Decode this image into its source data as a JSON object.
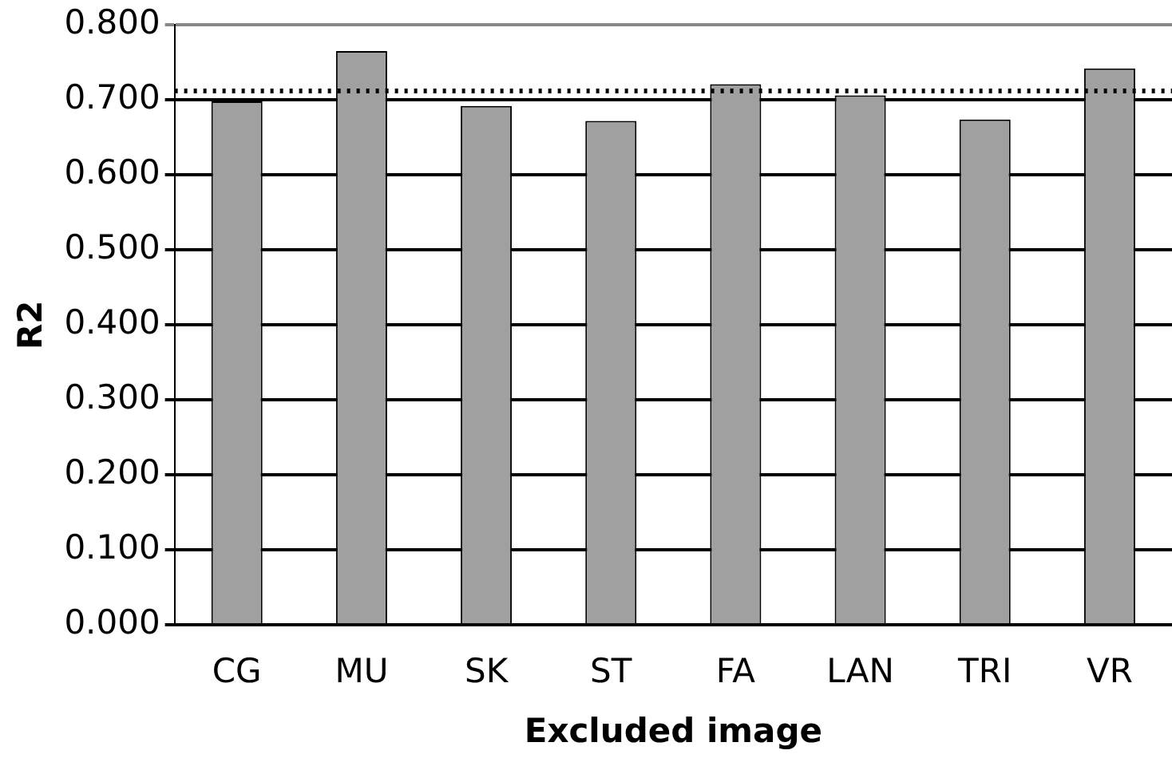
{
  "chart_data": {
    "type": "bar",
    "xlabel": "Excluded image",
    "ylabel": "R2",
    "categories": [
      "CG",
      "MU",
      "SK",
      "ST",
      "FA",
      "LAN",
      "TRI",
      "VR"
    ],
    "values": [
      0.698,
      0.765,
      0.692,
      0.672,
      0.721,
      0.706,
      0.674,
      0.742
    ],
    "color": "#a0a0a0",
    "ylim": [
      0,
      0.8
    ],
    "yticks": [
      {
        "value": 0,
        "label": "0.000"
      },
      {
        "value": 0.1,
        "label": "0.100"
      },
      {
        "value": 0.2,
        "label": "0.200"
      },
      {
        "value": 0.3,
        "label": "0.300"
      },
      {
        "value": 0.4,
        "label": "0.400"
      },
      {
        "value": 0.5,
        "label": "0.500"
      },
      {
        "value": 0.6,
        "label": "0.600"
      },
      {
        "value": 0.7,
        "label": "0.700"
      },
      {
        "value": 0.8,
        "label": "0.800"
      }
    ],
    "ref_lines": [
      {
        "axis": "y",
        "value": 0.712,
        "color": "#000000",
        "line_style": "dotted"
      }
    ],
    "grid": "y",
    "legend": false
  }
}
